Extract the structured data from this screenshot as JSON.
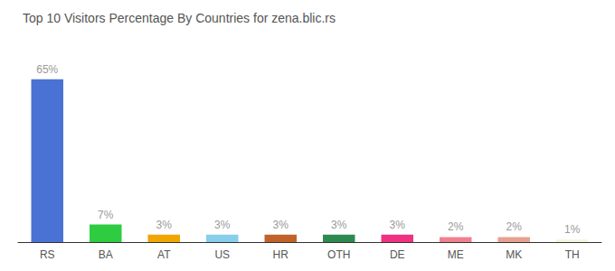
{
  "chart_data": {
    "type": "bar",
    "title": "Top 10 Visitors Percentage By Countries for zena.blic.rs",
    "categories": [
      "RS",
      "BA",
      "AT",
      "US",
      "HR",
      "OTH",
      "DE",
      "ME",
      "MK",
      "TH"
    ],
    "values": [
      65,
      7,
      3,
      3,
      3,
      3,
      3,
      2,
      2,
      1
    ],
    "value_labels": [
      "65%",
      "7%",
      "3%",
      "3%",
      "3%",
      "3%",
      "3%",
      "2%",
      "2%",
      "1%"
    ],
    "colors": [
      "#4a72d4",
      "#2ecc40",
      "#f0a500",
      "#87ceeb",
      "#c0622a",
      "#2d8a4e",
      "#f03080",
      "#f08090",
      "#e8a090",
      "#f5f5dc"
    ],
    "ylim": [
      0,
      75
    ],
    "grid": false,
    "data_labels": true,
    "tick_labels": "x"
  }
}
